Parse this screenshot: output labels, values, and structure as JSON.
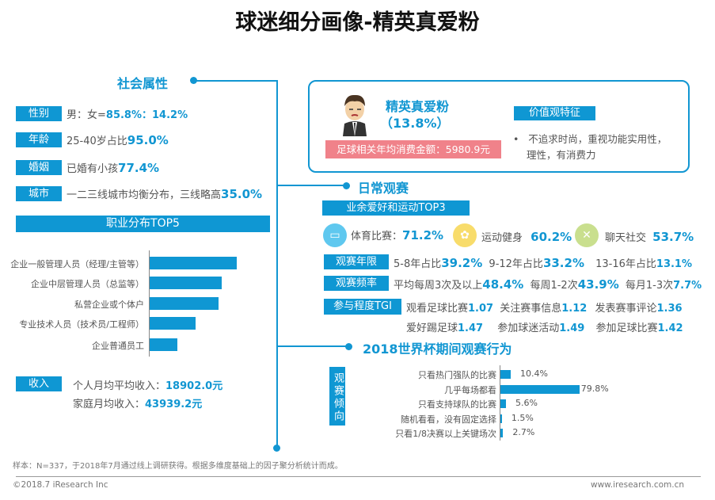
{
  "title": "球迷细分画像-精英真爱粉",
  "colors": {
    "accent": "#0f97d3",
    "pink": "#f0828a"
  },
  "social": {
    "heading": "社会属性",
    "rows": [
      {
        "label": "性别",
        "text": "男：女=",
        "value": "85.8%：14.2%"
      },
      {
        "label": "年龄",
        "text": "25-40岁占比",
        "value": "95.0%"
      },
      {
        "label": "婚姻",
        "text": "已婚有小孩",
        "value": "77.4%"
      },
      {
        "label": "城市",
        "text": "一二三线城市均衡分布，三线略高",
        "value": "35.0%"
      }
    ],
    "occupation_title": "职业分布TOP5",
    "income": {
      "label": "收入",
      "personal_text": "个人月均平均收入：",
      "personal_value": "18902.0元",
      "family_text": "家庭月均收入：",
      "family_value": "43939.2元"
    }
  },
  "chart_data": [
    {
      "type": "bar",
      "orientation": "horizontal",
      "title": "职业分布TOP5",
      "categories": [
        "企业一般管理人员（经理/主管等）",
        "企业中层管理人员（总监等）",
        "私营企业或个体户",
        "专业技术人员（技术员/工程师）",
        "企业普通员工"
      ],
      "values": [
        110,
        91,
        87,
        58,
        35
      ],
      "note_units": "relative, unlabeled"
    },
    {
      "type": "bar",
      "orientation": "horizontal",
      "title": "观赛倾向",
      "categories": [
        "只看热门强队的比赛",
        "几乎每场都看",
        "只看支持球队的比赛",
        "随机看看，没有固定选择",
        "只看1/8决赛以上关键场次"
      ],
      "values": [
        10.4,
        79.8,
        5.6,
        1.5,
        2.7
      ],
      "labels": [
        "10.4%",
        "79.8%",
        "5.6%",
        "1.5%",
        "2.7%"
      ]
    }
  ],
  "card": {
    "name": "精英真爱粉",
    "share": "（13.8%）",
    "spend": "足球相关年均消费金额：5980.9元",
    "values_title": "价值观特征",
    "values_bullet": "不追求时尚，重视功能实用性，",
    "values_bullet2": "理性，有消费力",
    "avatar_icon": "businessman-avatar-icon"
  },
  "daily": {
    "heading": "日常观赛",
    "hobby_title": "业余爱好和运动TOP3",
    "hobbies": [
      {
        "icon": "monitor-icon",
        "label": "体育比赛：",
        "value": "71.2%"
      },
      {
        "icon": "fitness-icon",
        "label": "运动健身",
        "value": "60.2%"
      },
      {
        "icon": "tools-icon",
        "label": "聊天社交",
        "value": "53.7%"
      }
    ],
    "years": {
      "label": "观赛年限",
      "items": [
        {
          "t": "5-8年占比",
          "v": "39.2%"
        },
        {
          "t": "9-12年占比",
          "v": "33.2%"
        },
        {
          "t": "13-16年占比",
          "v": "13.1%"
        }
      ]
    },
    "freq": {
      "label": "观赛频率",
      "items": [
        {
          "t": "平均每周3次及以上",
          "v": "48.4%"
        },
        {
          "t": "每周1-2次",
          "v": "43.9%"
        },
        {
          "t": "每月1-3次",
          "v": "7.7%"
        }
      ]
    },
    "tgi": {
      "label": "参与程度TGI",
      "items": [
        {
          "t": "观看足球比赛",
          "v": "1.07"
        },
        {
          "t": "关注赛事信息",
          "v": "1.12"
        },
        {
          "t": "发表赛事评论",
          "v": "1.36"
        },
        {
          "t": "爱好踢足球",
          "v": "1.47"
        },
        {
          "t": "参加球迷活动",
          "v": "1.49"
        },
        {
          "t": "参加足球比赛",
          "v": "1.42"
        }
      ]
    }
  },
  "worldcup": {
    "heading": "2018世界杯期间观赛行为",
    "side_label": "观赛倾向"
  },
  "footnote": "样本：N=337，于2018年7月通过线上调研获得。根据多维度基础上的因子聚分析统计而成。",
  "footer": {
    "copyright": "©2018.7 iResearch Inc",
    "url": "www.iresearch.com.cn"
  }
}
